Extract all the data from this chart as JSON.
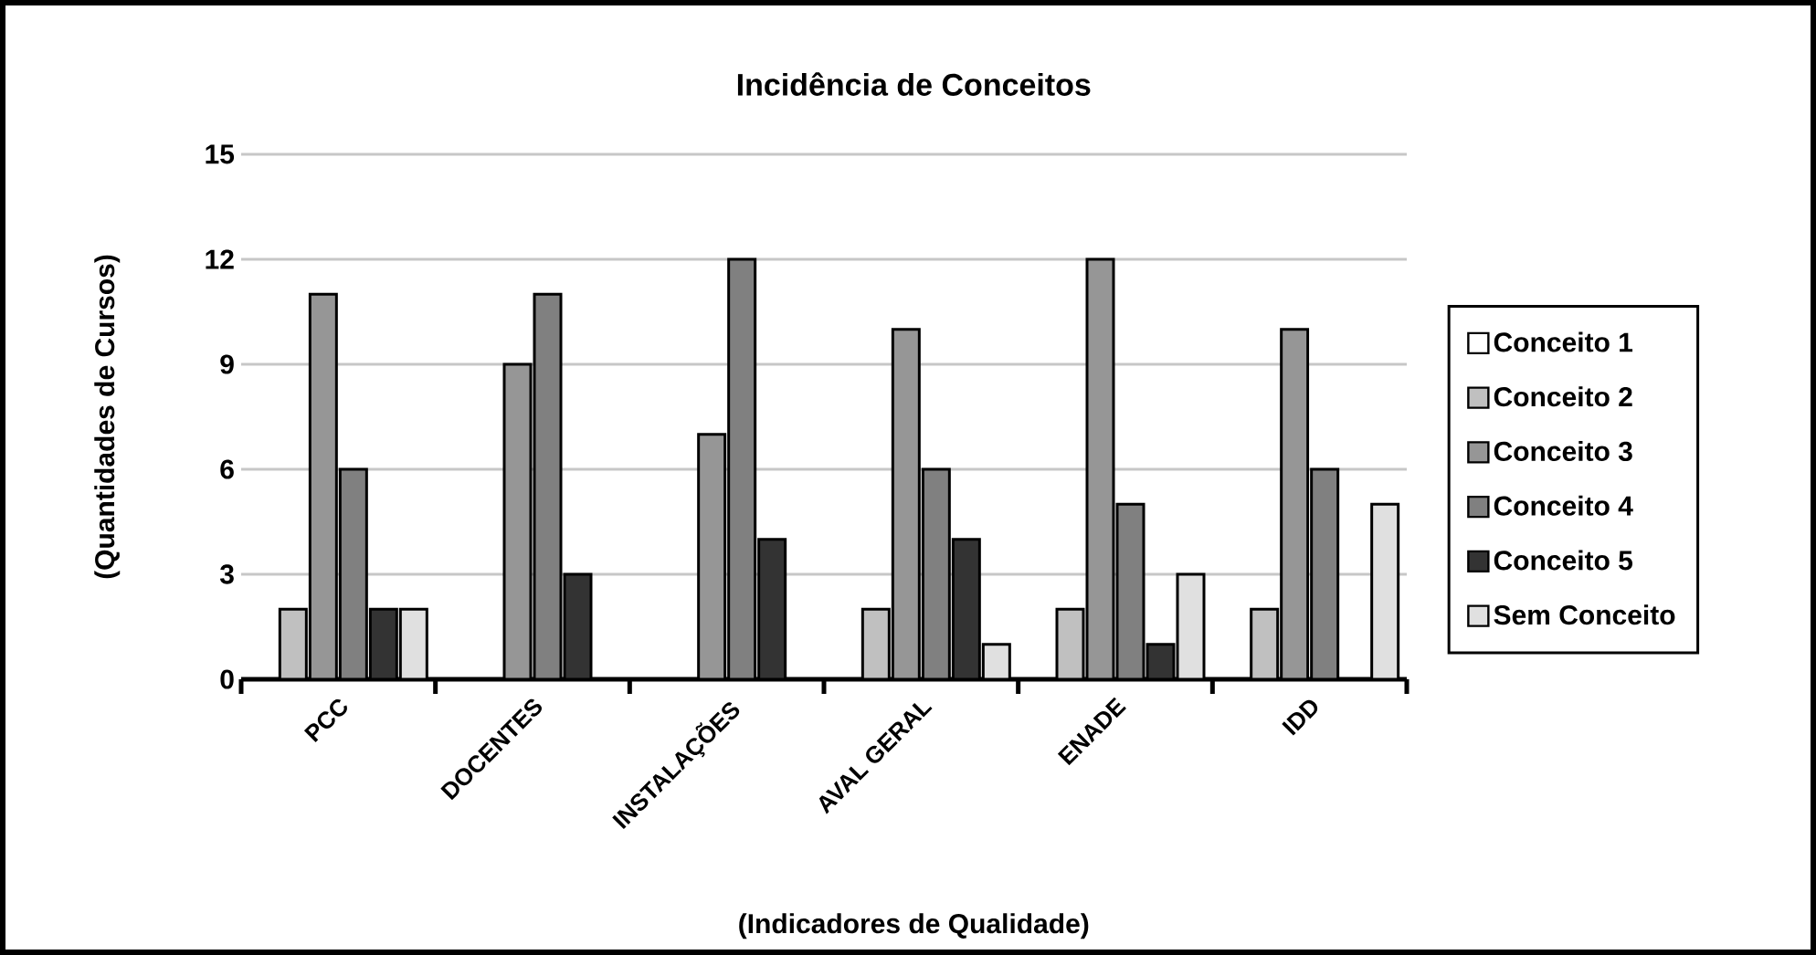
{
  "chart_data": {
    "type": "bar",
    "title": "Incidência de Conceitos",
    "xlabel": "(Indicadores de Qualidade)",
    "ylabel": "(Quantidades de Cursos)",
    "categories": [
      "PCC",
      "DOCENTES",
      "INSTALAÇÕES",
      "AVAL GERAL",
      "ENADE",
      "IDD"
    ],
    "series": [
      {
        "name": "Conceito 1",
        "color": "#ffffff",
        "values": [
          0,
          0,
          0,
          0,
          0,
          0
        ]
      },
      {
        "name": "Conceito 2",
        "color": "#c0c0c0",
        "values": [
          2,
          0,
          0,
          2,
          2,
          2
        ]
      },
      {
        "name": "Conceito 3",
        "color": "#969696",
        "values": [
          11,
          9,
          7,
          10,
          12,
          10
        ]
      },
      {
        "name": "Conceito 4",
        "color": "#808080",
        "values": [
          6,
          11,
          12,
          6,
          5,
          6
        ]
      },
      {
        "name": "Conceito 5",
        "color": "#333333",
        "values": [
          2,
          3,
          4,
          4,
          1,
          0
        ]
      },
      {
        "name": "Sem Conceito",
        "color": "#e0e0e0",
        "values": [
          2,
          0,
          0,
          1,
          3,
          5
        ]
      }
    ],
    "ylim": [
      0,
      15
    ],
    "yticks": [
      0,
      3,
      6,
      9,
      12,
      15
    ],
    "grid": "y",
    "legend": "right"
  }
}
